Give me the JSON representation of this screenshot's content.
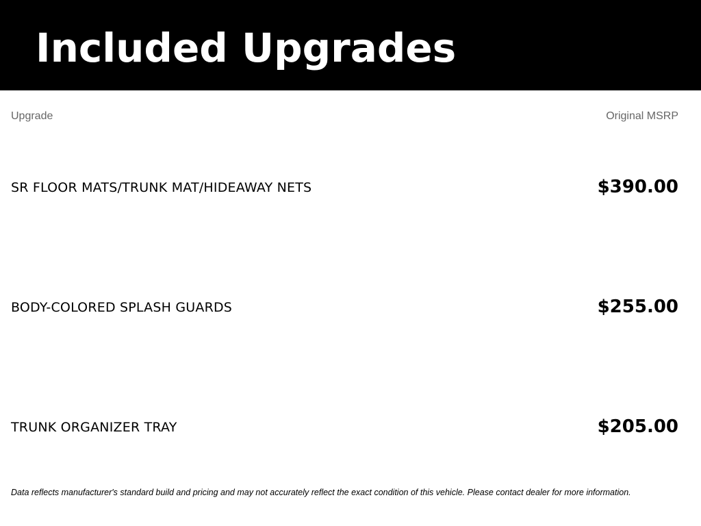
{
  "header": {
    "title": "Included Upgrades"
  },
  "columns": {
    "upgrade": "Upgrade",
    "msrp": "Original MSRP"
  },
  "rows": [
    {
      "name": "SR FLOOR MATS/TRUNK MAT/HIDEAWAY NETS",
      "price": "$390.00"
    },
    {
      "name": "BODY-COLORED SPLASH GUARDS",
      "price": "$255.00"
    },
    {
      "name": "TRUNK ORGANIZER TRAY",
      "price": "$205.00"
    }
  ],
  "disclaimer": "Data reflects manufacturer's standard build and pricing and may not accurately reflect the exact condition of this vehicle. Please contact dealer for more information."
}
